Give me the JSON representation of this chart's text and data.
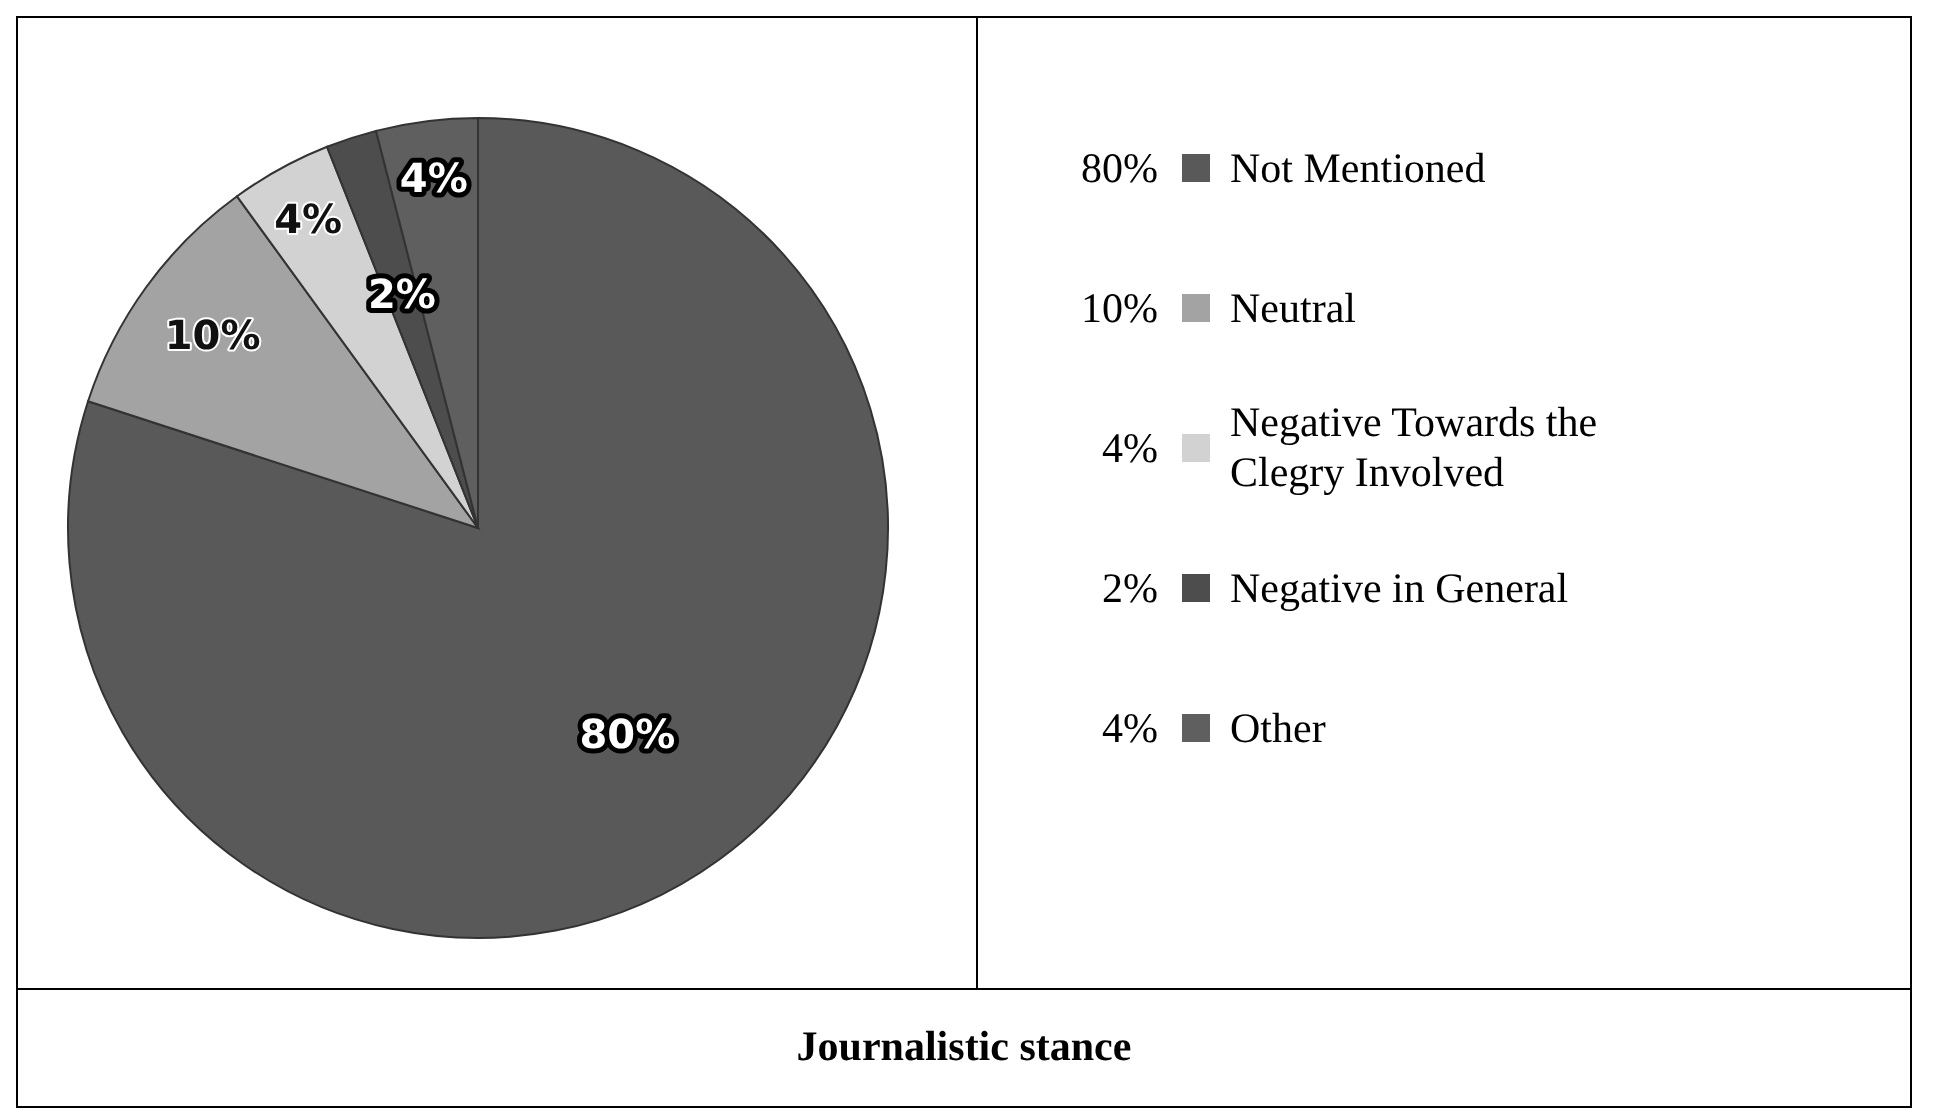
{
  "chart_data": {
    "type": "pie",
    "title": "Journalistic stance",
    "categories": [
      "Not Mentioned",
      "Neutral",
      "Negative Towards the Clegry Involved",
      "Negative in General",
      "Other"
    ],
    "values": [
      80,
      10,
      4,
      2,
      4
    ],
    "value_labels": [
      "80%",
      "10%",
      "4%",
      "2%",
      "4%"
    ],
    "colors": [
      "#595959",
      "#a3a3a3",
      "#d2d2d2",
      "#4d4d4d",
      "#5f5f5f"
    ],
    "data_labels": true,
    "legend": "right"
  }
}
